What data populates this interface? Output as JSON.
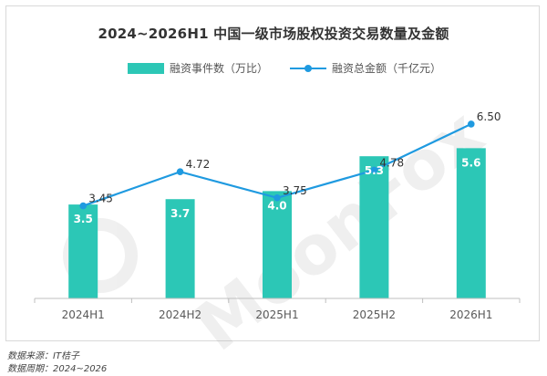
{
  "chart_data": {
    "type": "bar",
    "title": "2024~2026H1 中国一级市场股权投资交易数量及金额",
    "categories": [
      "2024H1",
      "2024H2",
      "2025H1",
      "2025H2",
      "2026H1"
    ],
    "series": [
      {
        "name": "融资事件数（万比）",
        "type": "bar",
        "values": [
          3.5,
          3.7,
          4.0,
          5.3,
          5.6
        ],
        "labels": [
          "3.5",
          "3.7",
          "4.0",
          "5.3",
          "5.6"
        ],
        "color": "#2cc7b6"
      },
      {
        "name": "融资总金额（千亿元）",
        "type": "line",
        "values": [
          3.45,
          4.72,
          3.75,
          4.78,
          6.5
        ],
        "labels": [
          "3.45",
          "4.72",
          "3.75",
          "4.78",
          "6.50"
        ],
        "color": "#1f9ae0"
      }
    ],
    "ylim_bar": [
      0,
      8
    ],
    "ylim_line": [
      0,
      8
    ],
    "grid": false,
    "legend": "top-center"
  },
  "watermark": "MoonFox",
  "footer": {
    "source": "数据来源：IT桔子",
    "period": "数据周期：2024~2026"
  }
}
